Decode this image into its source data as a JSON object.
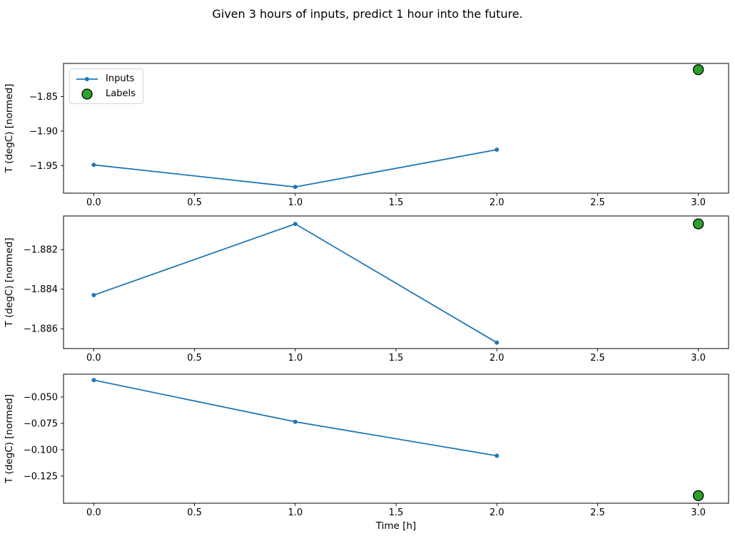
{
  "figure": {
    "title": "Given 3 hours of inputs, predict 1 hour into the future.",
    "colors": {
      "inputs_line": "#1f77b4",
      "labels_fill": "#2ca02c",
      "labels_edge": "#000000",
      "axis": "#000000",
      "legend_border": "#d4d4d4",
      "background": "#ffffff"
    }
  },
  "legend": {
    "items": [
      {
        "label": "Inputs",
        "marker": "line-with-dot-icon"
      },
      {
        "label": "Labels",
        "marker": "green-circle-icon"
      }
    ]
  },
  "chart_data": [
    {
      "type": "line",
      "title": "",
      "xlabel": "",
      "ylabel": "T (degC) [normed]",
      "xlim": [
        -0.15,
        3.15
      ],
      "ylim": [
        -1.99,
        -1.802
      ],
      "x_ticks": [
        0.0,
        0.5,
        1.0,
        1.5,
        2.0,
        2.5,
        3.0
      ],
      "x_tick_labels": [
        "0.0",
        "0.5",
        "1.0",
        "1.5",
        "2.0",
        "2.5",
        "3.0"
      ],
      "y_ticks": [
        -1.85,
        -1.9,
        -1.95
      ],
      "y_tick_labels": [
        "−1.85",
        "−1.90",
        "−1.95"
      ],
      "grid": false,
      "series": [
        {
          "name": "Inputs",
          "type": "line",
          "x": [
            0,
            1,
            2
          ],
          "y": [
            -1.949,
            -1.981,
            -1.927
          ],
          "color": "#1f77b4"
        },
        {
          "name": "Labels",
          "type": "scatter",
          "x": [
            3
          ],
          "y": [
            -1.811
          ],
          "color": "#2ca02c"
        }
      ]
    },
    {
      "type": "line",
      "title": "",
      "xlabel": "",
      "ylabel": "T (degC) [normed]",
      "xlim": [
        -0.15,
        3.15
      ],
      "ylim": [
        -1.887,
        -1.8803
      ],
      "x_ticks": [
        0.0,
        0.5,
        1.0,
        1.5,
        2.0,
        2.5,
        3.0
      ],
      "x_tick_labels": [
        "0.0",
        "0.5",
        "1.0",
        "1.5",
        "2.0",
        "2.5",
        "3.0"
      ],
      "y_ticks": [
        -1.882,
        -1.884,
        -1.886
      ],
      "y_tick_labels": [
        "−1.882",
        "−1.884",
        "−1.886"
      ],
      "grid": false,
      "series": [
        {
          "name": "Inputs",
          "type": "line",
          "x": [
            0,
            1,
            2
          ],
          "y": [
            -1.8843,
            -1.8807,
            -1.8867
          ],
          "color": "#1f77b4"
        },
        {
          "name": "Labels",
          "type": "scatter",
          "x": [
            3
          ],
          "y": [
            -1.8807
          ],
          "color": "#2ca02c"
        }
      ]
    },
    {
      "type": "line",
      "title": "",
      "xlabel": "Time [h]",
      "ylabel": "T (degC) [normed]",
      "xlim": [
        -0.15,
        3.15
      ],
      "ylim": [
        -0.1507,
        -0.0284
      ],
      "x_ticks": [
        0.0,
        0.5,
        1.0,
        1.5,
        2.0,
        2.5,
        3.0
      ],
      "x_tick_labels": [
        "0.0",
        "0.5",
        "1.0",
        "1.5",
        "2.0",
        "2.5",
        "3.0"
      ],
      "y_ticks": [
        -0.05,
        -0.075,
        -0.1,
        -0.125
      ],
      "y_tick_labels": [
        "−0.050",
        "−0.075",
        "−0.100",
        "−0.125"
      ],
      "grid": false,
      "series": [
        {
          "name": "Inputs",
          "type": "line",
          "x": [
            0,
            1,
            2
          ],
          "y": [
            -0.034,
            -0.0735,
            -0.1057
          ],
          "color": "#1f77b4"
        },
        {
          "name": "Labels",
          "type": "scatter",
          "x": [
            3
          ],
          "y": [
            -0.1435
          ],
          "color": "#2ca02c"
        }
      ]
    }
  ]
}
